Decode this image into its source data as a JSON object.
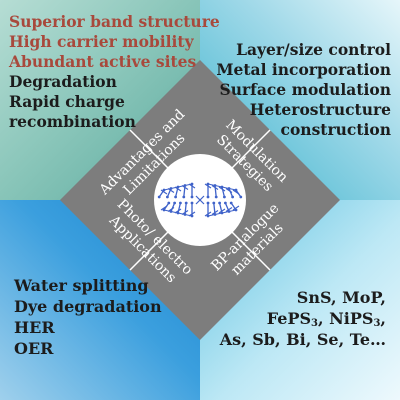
{
  "top_left": {
    "advantages": [
      "Superior band structure",
      "High carrier mobility",
      "Abundant active sites"
    ],
    "limitations": [
      "Degradation",
      "Rapid charge",
      "recombination"
    ]
  },
  "top_right": {
    "items": [
      "Layer/size control",
      "Metal incorporation",
      "Surface modulation",
      "Heterostructure",
      "construction"
    ]
  },
  "bottom_left": {
    "items": [
      "Water splitting",
      "Dye degradation",
      "HER",
      "OER"
    ]
  },
  "bottom_right": {
    "line1": "SnS, MoP,",
    "line2_a": "FePS",
    "line2_sub_a": "3",
    "line2_b": ", NiPS",
    "line2_sub_b": "3",
    "line2_c": ",",
    "line3": "As, Sb, Bi, Se, Te…"
  },
  "diamond": {
    "top_left_label": [
      "Advantages and",
      "Limitations"
    ],
    "top_right_label": [
      "Modulation",
      "Strategies"
    ],
    "bottom_left_label": [
      "Photo/ electro",
      "Applications"
    ],
    "bottom_right_label": [
      "BP-analogue",
      "materials"
    ]
  },
  "colors": {
    "advantage_text": "#a8493c",
    "body_text": "#1c1c1c",
    "diamond_fill": "#7d7d7d",
    "center_circle": "#ffffff",
    "molecule": "#3f62c9"
  },
  "center_icon": "phosphorene-structure-icon"
}
